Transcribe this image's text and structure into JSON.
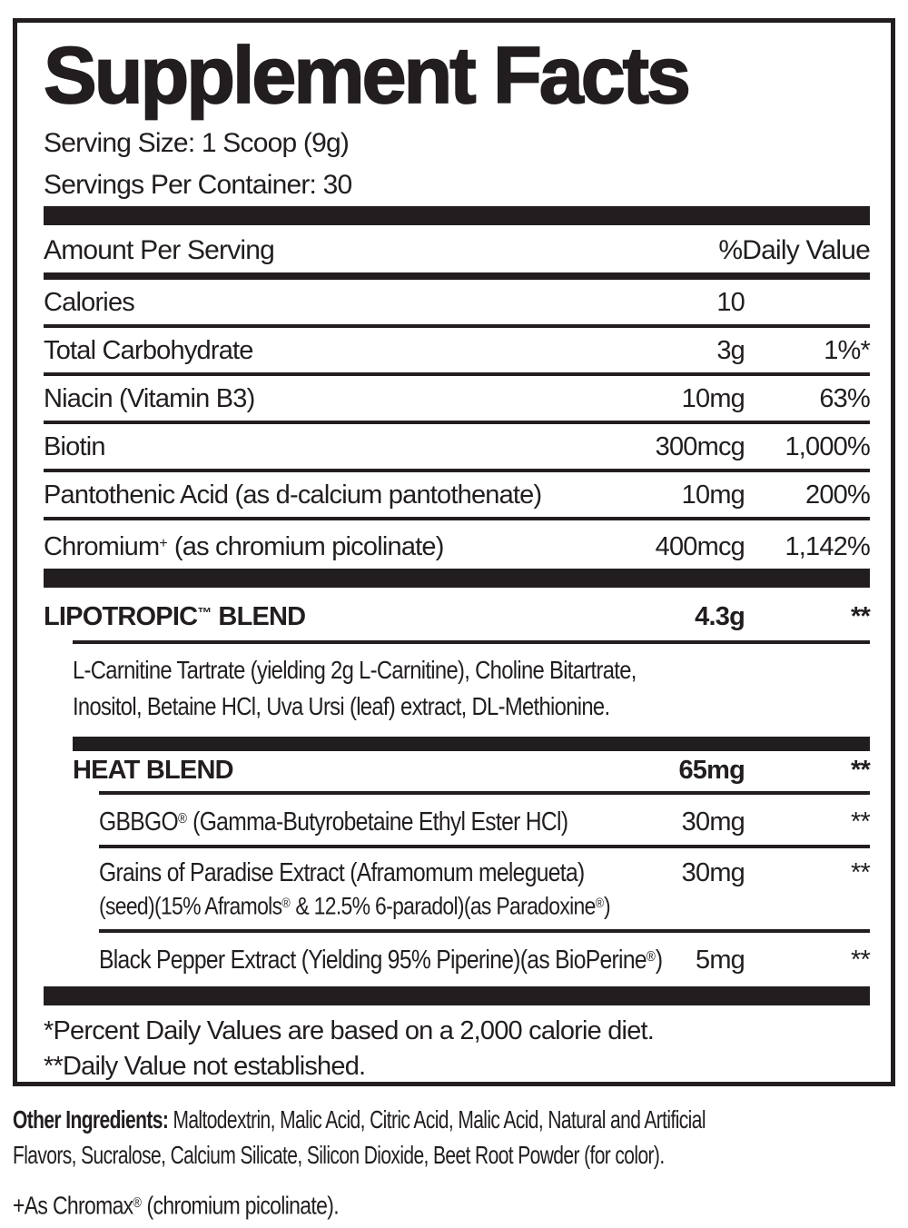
{
  "label": {
    "title": "Supplement Facts",
    "serving_size": "Serving Size: 1 Scoop (9g)",
    "servings_per_container": "Servings Per Container: 30",
    "col_amount": "Amount Per Serving",
    "col_dv": "%Daily Value"
  },
  "nutrients": [
    {
      "name": "Calories",
      "amount": "10",
      "dv": ""
    },
    {
      "name": "Total Carbohydrate",
      "amount": "3g",
      "dv": "1%*"
    },
    {
      "name": "Niacin (Vitamin B3)",
      "amount": "10mg",
      "dv": "63%"
    },
    {
      "name": "Biotin",
      "amount": "300mcg",
      "dv": "1,000%"
    },
    {
      "name": "Pantothenic Acid (as d-calcium pantothenate)",
      "amount": "10mg",
      "dv": "200%"
    },
    {
      "name_pre": "Chromium",
      "name_sup": "+",
      "name_post": " (as chromium picolinate)",
      "amount": "400mcg",
      "dv": "1,142%"
    }
  ],
  "lipotropic": {
    "name_pre": "LIPOTROPIC",
    "name_sup": "™",
    "name_post": " BLEND",
    "amount": "4.3g",
    "dv": "**",
    "desc_line1": "L-Carnitine Tartrate (yielding 2g L-Carnitine), Choline Bitartrate,",
    "desc_line2": "Inositol, Betaine HCl, Uva Ursi (leaf) extract, DL-Methionine."
  },
  "heat_blend": {
    "name": "HEAT BLEND",
    "amount": "65mg",
    "dv": "**"
  },
  "heat_items": [
    {
      "name_pre": "GBBGO",
      "name_sup": "®",
      "name_post": " (Gamma-Butyrobetaine Ethyl Ester HCl)",
      "amount": "30mg",
      "dv": "**"
    },
    {
      "name_line1": "Grains of Paradise Extract (Aframomum melegueta)",
      "amount": "30mg",
      "dv": "**",
      "line2_a": "(seed)(15% Aframols",
      "line2_sup_a": "®",
      "line2_b": " & 12.5% 6-paradol)(as Paradoxine",
      "line2_sup_b": "®",
      "line2_c": ")"
    },
    {
      "name_pre": "Black Pepper Extract (Yielding 95% Piperine)(as BioPerine",
      "name_sup": "®",
      "name_post": ")",
      "amount": "5mg",
      "dv": "**"
    }
  ],
  "footnotes": {
    "line1": "*Percent Daily Values are based on a 2,000 calorie diet.",
    "line2": "**Daily Value not established."
  },
  "other_ingredients": {
    "label": "Other Ingredients:",
    "line1_rest": " Maltodextrin, Malic Acid, Citric Acid, Malic Acid, Natural and Artificial",
    "line2": "Flavors, Sucralose, Calcium Silicate, Silicon Dioxide, Beet Root Powder (for color)."
  },
  "chromax_note": {
    "pre": "+As Chromax",
    "sup": "®",
    "post": " (chromium picolinate)."
  },
  "colors": {
    "ink": "#221e1f",
    "background": "#ffffff"
  }
}
